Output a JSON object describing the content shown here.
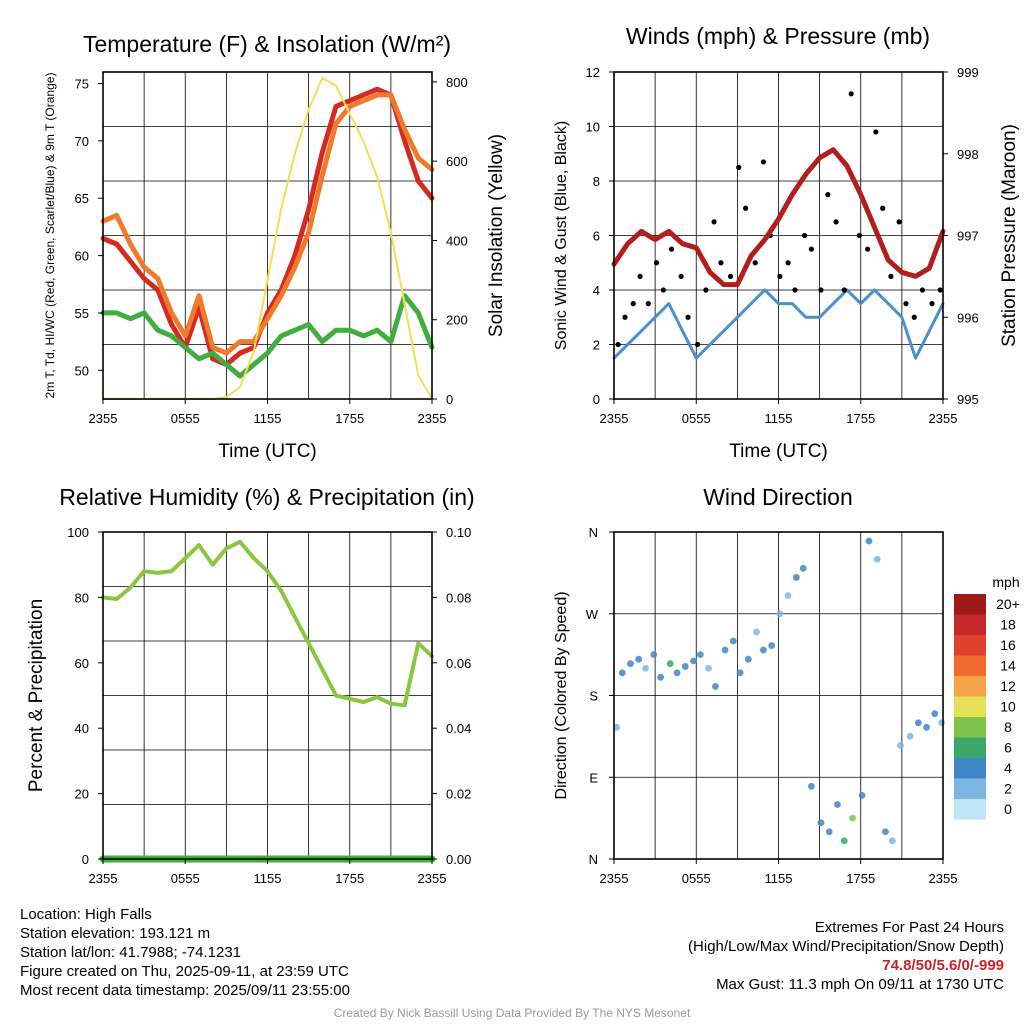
{
  "chart_data": [
    {
      "type": "line",
      "title": "Temperature (F) & Insolation (W/m²)",
      "xlabel": "Time (UTC)",
      "ylabel_left": "2m T, Td, HI/WC (Red, Green, Scarlet/Blue) & 9m T (Orange)",
      "ylabel_right": "Solar Insolation (Yellow)",
      "x_ticks": [
        "2355",
        "0555",
        "1155",
        "1755",
        "2355"
      ],
      "ylim_left": [
        47.5,
        76
      ],
      "ylim_right": [
        0,
        825
      ],
      "y_ticks_left": [
        50,
        55,
        60,
        65,
        70,
        75
      ],
      "y_ticks_right": [
        0,
        200,
        400,
        600,
        800
      ],
      "series": [
        {
          "name": "2m T",
          "color": "#d42a20",
          "axis": "left",
          "x": [
            0,
            1,
            2,
            3,
            4,
            5,
            6,
            7,
            8,
            9,
            10,
            11,
            12,
            13,
            14,
            15,
            16,
            17,
            18,
            19,
            20,
            21,
            22,
            23,
            24
          ],
          "values": [
            61.5,
            61,
            59.5,
            58,
            57,
            54,
            52,
            55.5,
            51,
            50.5,
            51.5,
            52,
            55,
            57,
            60,
            64,
            69,
            73,
            73.5,
            74,
            74.5,
            74,
            70,
            66.5,
            65
          ]
        },
        {
          "name": "9m T",
          "color": "#f07a2b",
          "axis": "left",
          "x": [
            0,
            1,
            2,
            3,
            4,
            5,
            6,
            7,
            8,
            9,
            10,
            11,
            12,
            13,
            14,
            15,
            16,
            17,
            18,
            19,
            20,
            21,
            22,
            23,
            24
          ],
          "values": [
            63,
            63.5,
            61,
            59,
            58,
            55,
            53,
            56.5,
            52,
            51.5,
            52.5,
            52.5,
            54.5,
            56.5,
            59,
            62,
            67,
            71.5,
            73,
            73.5,
            74,
            74,
            71,
            68.5,
            67.5
          ]
        },
        {
          "name": "2m Td",
          "color": "#3fae3f",
          "axis": "left",
          "x": [
            0,
            1,
            2,
            3,
            4,
            5,
            6,
            7,
            8,
            9,
            10,
            11,
            12,
            13,
            14,
            15,
            16,
            17,
            18,
            19,
            20,
            21,
            22,
            23,
            24
          ],
          "values": [
            55,
            55,
            54.5,
            55,
            53.5,
            53,
            52,
            51,
            51.5,
            50.5,
            49.5,
            50.5,
            51.5,
            53,
            53.5,
            54,
            52.5,
            53.5,
            53.5,
            53,
            53.5,
            52.5,
            56.5,
            55,
            52
          ]
        },
        {
          "name": "Solar Insolation",
          "color": "#f3df55",
          "axis": "right",
          "x": [
            0,
            4,
            8,
            9,
            10,
            11,
            12,
            13,
            14,
            15,
            16,
            17,
            18,
            19,
            20,
            21,
            22,
            23,
            24
          ],
          "values": [
            0,
            0,
            0,
            5,
            30,
            120,
            300,
            480,
            620,
            730,
            810,
            790,
            720,
            650,
            560,
            420,
            240,
            60,
            0
          ]
        }
      ]
    },
    {
      "type": "scatter",
      "title": "Winds (mph) & Pressure (mb)",
      "xlabel": "Time (UTC)",
      "ylabel_left": "Sonic Wind & Gust (Blue, Black)",
      "ylabel_right": "Station Pressure (Maroon)",
      "x_ticks": [
        "2355",
        "0555",
        "1155",
        "1755",
        "2355"
      ],
      "ylim_left": [
        0,
        12
      ],
      "ylim_right": [
        995,
        999
      ],
      "y_ticks_left": [
        0,
        2,
        4,
        6,
        8,
        10,
        12
      ],
      "y_ticks_right": [
        995,
        996,
        997,
        998,
        999
      ],
      "series": [
        {
          "name": "Sonic Wind",
          "color": "#4a90d0",
          "type": "line",
          "x": [
            0,
            1,
            2,
            3,
            4,
            5,
            6,
            7,
            8,
            9,
            10,
            11,
            12,
            13,
            14,
            15,
            16,
            17,
            18,
            19,
            20,
            21,
            22,
            23,
            24
          ],
          "values": [
            1.5,
            2,
            2.5,
            3,
            3.5,
            2.5,
            1.5,
            2,
            2.5,
            3,
            3.5,
            4,
            3.5,
            3.5,
            3,
            3,
            3.5,
            4,
            3.5,
            4,
            3.5,
            3,
            1.5,
            2.5,
            3.5
          ]
        },
        {
          "name": "Gust",
          "color": "#000000",
          "type": "scatter",
          "x": [
            0.3,
            0.8,
            1.4,
            1.9,
            2.5,
            3.1,
            3.6,
            4.2,
            4.9,
            5.4,
            6.1,
            6.7,
            7.3,
            7.8,
            8.5,
            9.1,
            9.6,
            10.3,
            10.9,
            11.4,
            12.1,
            12.7,
            13.2,
            13.9,
            14.4,
            15.1,
            15.6,
            16.2,
            16.8,
            17.3,
            17.9,
            18.5,
            19.1,
            19.6,
            20.2,
            20.8,
            21.3,
            21.9,
            22.5,
            23.2,
            23.8
          ],
          "values": [
            2,
            3,
            3.5,
            4.5,
            3.5,
            5,
            4,
            5.5,
            4.5,
            3,
            2,
            4,
            6.5,
            5,
            4.5,
            8.5,
            7,
            5,
            8.7,
            6,
            4.5,
            5,
            4,
            6,
            5.5,
            4,
            7.5,
            6.5,
            4,
            11.2,
            6,
            5.5,
            9.8,
            7,
            4.5,
            6.5,
            3.5,
            3,
            4,
            3.5,
            4
          ]
        },
        {
          "name": "Station Pressure",
          "color": "#b01e1e",
          "type": "line",
          "axis": "right",
          "x": [
            0,
            1,
            2,
            3,
            4,
            5,
            6,
            7,
            8,
            9,
            10,
            11,
            12,
            13,
            14,
            15,
            16,
            17,
            18,
            19,
            20,
            21,
            22,
            23,
            24
          ],
          "values": [
            996.65,
            996.9,
            997.05,
            996.95,
            997.05,
            996.9,
            996.85,
            996.55,
            996.4,
            996.4,
            996.75,
            996.95,
            997.2,
            997.5,
            997.75,
            997.95,
            998.05,
            997.85,
            997.5,
            997.1,
            996.7,
            996.55,
            996.5,
            996.6,
            997.05
          ]
        }
      ]
    },
    {
      "type": "line",
      "title": "Relative Humidity (%) & Precipitation (in)",
      "ylabel_left": "Percent & Precipitation",
      "x_ticks": [
        "2355",
        "0555",
        "1155",
        "1755",
        "2355"
      ],
      "ylim_left": [
        0,
        100
      ],
      "ylim_right": [
        0,
        0.1
      ],
      "y_ticks_left": [
        0,
        20,
        40,
        60,
        80,
        100
      ],
      "y_ticks_right": [
        "0.00",
        "0.02",
        "0.04",
        "0.06",
        "0.08",
        "0.10"
      ],
      "series": [
        {
          "name": "Relative Humidity",
          "color": "#8cc63f",
          "axis": "left",
          "x": [
            0,
            1,
            2,
            3,
            4,
            5,
            6,
            7,
            8,
            9,
            10,
            11,
            12,
            13,
            14,
            15,
            16,
            17,
            18,
            19,
            20,
            21,
            22,
            23,
            24
          ],
          "values": [
            80,
            79.5,
            83,
            88,
            87.5,
            88,
            92,
            96,
            90,
            95,
            97,
            92,
            88,
            82,
            74,
            66,
            58,
            50,
            49,
            48,
            49.5,
            47.5,
            47,
            66,
            62
          ]
        },
        {
          "name": "Precipitation",
          "color": "#3fae3f",
          "axis": "right",
          "x": [
            0,
            24
          ],
          "values": [
            0,
            0
          ]
        }
      ]
    },
    {
      "type": "scatter",
      "title": "Wind Direction",
      "ylabel_left": "Direction (Colored By Speed)",
      "x_ticks": [
        "2355",
        "0555",
        "1155",
        "1755",
        "2355"
      ],
      "y_ticks_left": [
        "N",
        "E",
        "S",
        "W",
        "N"
      ],
      "ylim_left": [
        0,
        360
      ],
      "legend": {
        "title": "mph",
        "labels": [
          "20+",
          "18",
          "16",
          "14",
          "12",
          "10",
          "8",
          "6",
          "4",
          "2",
          "0"
        ],
        "colors": [
          "#9e1a1a",
          "#c42a2a",
          "#e0402e",
          "#f06a2e",
          "#f7a24a",
          "#e5e054",
          "#7ec34a",
          "#3aa669",
          "#3f86c6",
          "#7cb7e4",
          "#bfe6f7"
        ]
      },
      "series": [
        {
          "name": "Direction",
          "type": "scatter",
          "x": [
            0.2,
            0.6,
            1.2,
            1.8,
            2.3,
            2.9,
            3.4,
            4.1,
            4.6,
            5.2,
            5.8,
            6.3,
            6.9,
            7.4,
            8.1,
            8.7,
            9.2,
            9.8,
            10.4,
            10.9,
            11.5,
            12.1,
            12.7,
            13.3,
            13.8,
            14.4,
            15.1,
            15.7,
            16.3,
            16.8,
            17.4,
            18.1,
            18.6,
            19.2,
            19.8,
            20.3,
            20.9,
            21.6,
            22.2,
            22.8,
            23.4,
            23.9
          ],
          "values": [
            145,
            205,
            215,
            220,
            210,
            225,
            200,
            215,
            205,
            212,
            218,
            225,
            210,
            190,
            230,
            240,
            205,
            220,
            250,
            230,
            235,
            270,
            290,
            310,
            320,
            80,
            40,
            30,
            60,
            20,
            45,
            70,
            350,
            330,
            30,
            20,
            125,
            135,
            150,
            145,
            160,
            150
          ],
          "speeds": [
            2,
            4,
            3,
            4,
            2,
            4,
            3,
            5,
            4,
            4,
            3,
            4,
            2,
            3,
            4,
            3,
            3,
            4,
            2,
            3,
            4,
            1,
            2,
            4,
            3,
            3,
            4,
            3,
            4,
            5,
            7,
            3,
            4,
            2,
            3,
            2,
            1,
            2,
            4,
            3,
            4,
            2
          ]
        }
      ]
    }
  ],
  "info_left": {
    "location": "Location: High Falls",
    "elevation": "Station elevation: 193.121 m",
    "latlon": "Station lat/lon: 41.7988; -74.1231",
    "created": "Figure created on Thu, 2025-09-11, at 23:59 UTC",
    "recent": "Most recent data timestamp: 2025/09/11 23:55:00"
  },
  "info_right": {
    "extremes_title": "Extremes For Past 24 Hours",
    "extremes_subtitle": "(High/Low/Max Wind/Precipitation/Snow Depth)",
    "extremes_values": "74.8/50/5.6/0/-999",
    "max_gust": "Max Gust: 11.3 mph On 09/11 at 1730 UTC"
  },
  "footer": {
    "credit": "Created By Nick Bassill Using Data Provided By The NYS Mesonet"
  }
}
